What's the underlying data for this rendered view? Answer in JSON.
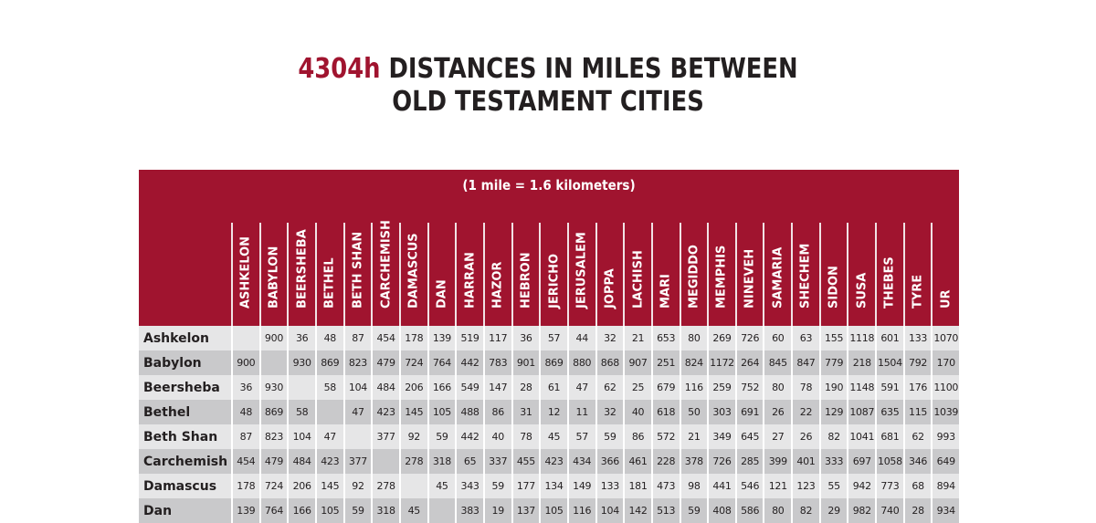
{
  "title": {
    "code": "4304h",
    "line1": "DISTANCES IN MILES BETWEEN",
    "line2": "OLD TESTAMENT CITIES"
  },
  "table": {
    "subtitle": "(1 mile  =  1.6 kilometers)",
    "columns": [
      "ASHKELON",
      "BABYLON",
      "BEERSHEBA",
      "BETHEL",
      "BETH SHAN",
      "CARCHEMISH",
      "DAMASCUS",
      "DAN",
      "HARRAN",
      "HAZOR",
      "HEBRON",
      "JERICHO",
      "JERUSALEM",
      "JOPPA",
      "LACHISH",
      "MARI",
      "MEGIDDO",
      "MEMPHIS",
      "NINEVEH",
      "SAMARIA",
      "SHECHEM",
      "SIDON",
      "SUSA",
      "THEBES",
      "TYRE",
      "UR"
    ],
    "rows": [
      {
        "label": "Ashkelon",
        "values": [
          "",
          "900",
          "36",
          "48",
          "87",
          "454",
          "178",
          "139",
          "519",
          "117",
          "36",
          "57",
          "44",
          "32",
          "21",
          "653",
          "80",
          "269",
          "726",
          "60",
          "63",
          "155",
          "1118",
          "601",
          "133",
          "1070"
        ]
      },
      {
        "label": "Babylon",
        "values": [
          "900",
          "",
          "930",
          "869",
          "823",
          "479",
          "724",
          "764",
          "442",
          "783",
          "901",
          "869",
          "880",
          "868",
          "907",
          "251",
          "824",
          "1172",
          "264",
          "845",
          "847",
          "779",
          "218",
          "1504",
          "792",
          "170"
        ]
      },
      {
        "label": "Beersheba",
        "values": [
          "36",
          "930",
          "",
          "58",
          "104",
          "484",
          "206",
          "166",
          "549",
          "147",
          "28",
          "61",
          "47",
          "62",
          "25",
          "679",
          "116",
          "259",
          "752",
          "80",
          "78",
          "190",
          "1148",
          "591",
          "176",
          "1100"
        ]
      },
      {
        "label": "Bethel",
        "values": [
          "48",
          "869",
          "58",
          "",
          "47",
          "423",
          "145",
          "105",
          "488",
          "86",
          "31",
          "12",
          "11",
          "32",
          "40",
          "618",
          "50",
          "303",
          "691",
          "26",
          "22",
          "129",
          "1087",
          "635",
          "115",
          "1039"
        ]
      },
      {
        "label": "Beth Shan",
        "values": [
          "87",
          "823",
          "104",
          "47",
          "",
          "377",
          "92",
          "59",
          "442",
          "40",
          "78",
          "45",
          "57",
          "59",
          "86",
          "572",
          "21",
          "349",
          "645",
          "27",
          "26",
          "82",
          "1041",
          "681",
          "62",
          "993"
        ]
      },
      {
        "label": "Carchemish",
        "values": [
          "454",
          "479",
          "484",
          "423",
          "377",
          "",
          "278",
          "318",
          "65",
          "337",
          "455",
          "423",
          "434",
          "366",
          "461",
          "228",
          "378",
          "726",
          "285",
          "399",
          "401",
          "333",
          "697",
          "1058",
          "346",
          "649"
        ]
      },
      {
        "label": "Damascus",
        "values": [
          "178",
          "724",
          "206",
          "145",
          "92",
          "278",
          "",
          "45",
          "343",
          "59",
          "177",
          "134",
          "149",
          "133",
          "181",
          "473",
          "98",
          "441",
          "546",
          "121",
          "123",
          "55",
          "942",
          "773",
          "68",
          "894"
        ]
      },
      {
        "label": "Dan",
        "values": [
          "139",
          "764",
          "166",
          "105",
          "59",
          "318",
          "45",
          "",
          "383",
          "19",
          "137",
          "105",
          "116",
          "104",
          "142",
          "513",
          "59",
          "408",
          "586",
          "80",
          "82",
          "29",
          "982",
          "740",
          "28",
          "934"
        ]
      }
    ]
  },
  "colors": {
    "accent": "#a0142f",
    "text": "#231f20",
    "row_light": "#e6e6e7",
    "row_dark": "#c9c9cb"
  }
}
